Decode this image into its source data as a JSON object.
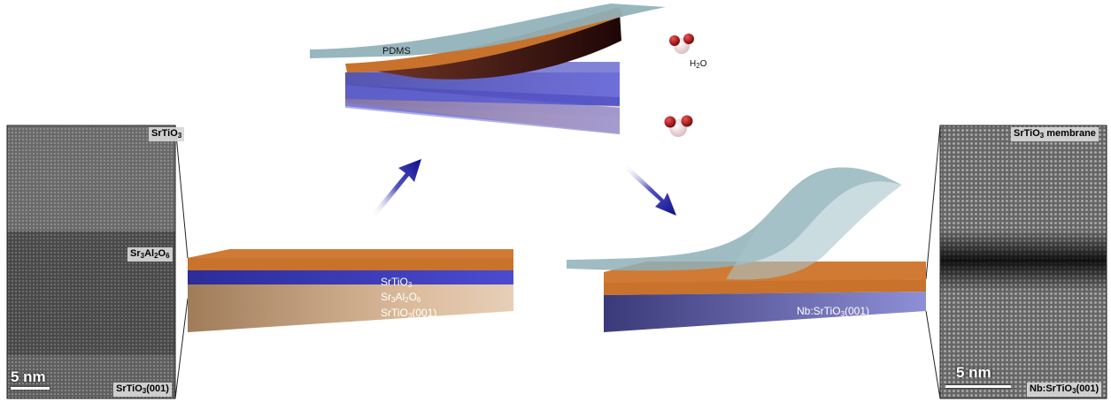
{
  "left_stem": {
    "labels": [
      {
        "base": "SrTiO",
        "sub": "3",
        "after": ""
      },
      {
        "base": "Sr",
        "sub": "3",
        "mid": "Al",
        "sub2": "2",
        "mid2": "O",
        "sub3": "6"
      },
      {
        "base": "SrTiO",
        "sub": "3",
        "after": "(001)"
      }
    ],
    "scale_bar": "5 nm"
  },
  "right_stem": {
    "labels": [
      {
        "base": "SrTiO",
        "sub": "3",
        "after": " membrane"
      },
      {
        "base": "Nb:SrTiO",
        "sub": "3",
        "after": "(001)"
      }
    ],
    "scale_bar": "5 nm"
  },
  "initial_stack": {
    "layers": [
      {
        "base": "SrTiO",
        "sub": "3",
        "after": ""
      },
      {
        "base": "Sr",
        "sub": "3",
        "mid": "Al",
        "sub2": "2",
        "mid2": "O",
        "sub3": "6"
      },
      {
        "base": "SrTiO",
        "sub": "3",
        "after": "(001)"
      }
    ]
  },
  "lift_off": {
    "pdms_label": "PDMS",
    "water_label": {
      "base": "H",
      "sub": "2",
      "after": "O"
    }
  },
  "transfer": {
    "substrate_label": {
      "base": "Nb:SrTiO",
      "sub": "3",
      "after": "(001)"
    }
  },
  "colors": {
    "srtio3_orange": "#c8722c",
    "sao_blue": "#3d3db8",
    "substrate_tan": "#c9a07e",
    "pdms_teal": "#8fb0b8",
    "arrow_blue": "#1a1a9a",
    "oxygen_red": "#b0141a",
    "hydrogen_white": "#f2e8ea"
  },
  "icons": [
    "process-arrow-icon",
    "water-molecule-icon"
  ]
}
